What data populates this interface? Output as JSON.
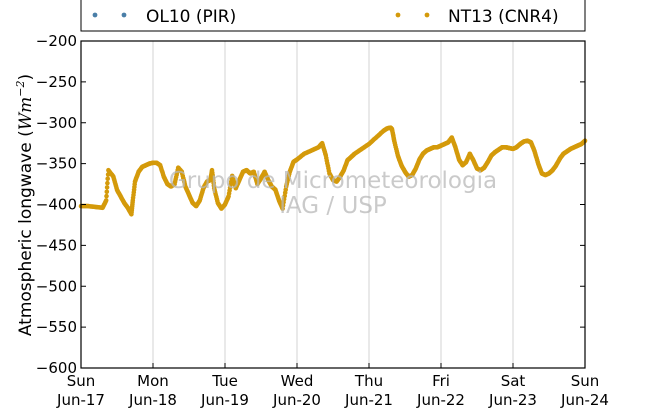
{
  "chart_data": {
    "type": "scatter",
    "ylabel": "Atmospheric longwave (",
    "ylabel_unit": "Wm",
    "ylabel_exp": "−2",
    "ylabel_close": ")",
    "ylim": [
      -600,
      -200
    ],
    "yticks": [
      -200,
      -250,
      -300,
      -350,
      -400,
      -450,
      -500,
      -550,
      -600
    ],
    "ytick_labels": [
      "−200",
      "−250",
      "−300",
      "−350",
      "−400",
      "−450",
      "−500",
      "−550",
      "−600"
    ],
    "xlim": [
      0,
      7
    ],
    "xticks": [
      {
        "x": 0,
        "day": "Sun",
        "date": "Jun-17"
      },
      {
        "x": 1,
        "day": "Mon",
        "date": "Jun-18"
      },
      {
        "x": 2,
        "day": "Tue",
        "date": "Jun-19"
      },
      {
        "x": 3,
        "day": "Wed",
        "date": "Jun-20"
      },
      {
        "x": 4,
        "day": "Thu",
        "date": "Jun-21"
      },
      {
        "x": 5,
        "day": "Fri",
        "date": "Jun-22"
      },
      {
        "x": 6,
        "day": "Sat",
        "date": "Jun-23"
      },
      {
        "x": 7,
        "day": "Sun",
        "date": "Jun-24"
      }
    ],
    "grid": "vertical",
    "legend_placement": "top",
    "series": [
      {
        "name": "OL10 (PIR)",
        "color": "#4a7fa8",
        "points": []
      },
      {
        "name": "NT13 (CNR4)",
        "color": "#d49a0b",
        "points": [
          [
            0.0,
            -402
          ],
          [
            0.1,
            -402
          ],
          [
            0.2,
            -403
          ],
          [
            0.3,
            -404
          ],
          [
            0.35,
            -395
          ],
          [
            0.38,
            -358
          ],
          [
            0.45,
            -366
          ],
          [
            0.5,
            -382
          ],
          [
            0.55,
            -390
          ],
          [
            0.6,
            -398
          ],
          [
            0.65,
            -404
          ],
          [
            0.7,
            -412
          ],
          [
            0.72,
            -395
          ],
          [
            0.75,
            -372
          ],
          [
            0.8,
            -360
          ],
          [
            0.85,
            -354
          ],
          [
            0.9,
            -352
          ],
          [
            0.95,
            -350
          ],
          [
            1.0,
            -349
          ],
          [
            1.05,
            -349
          ],
          [
            1.1,
            -352
          ],
          [
            1.15,
            -366
          ],
          [
            1.2,
            -375
          ],
          [
            1.25,
            -378
          ],
          [
            1.3,
            -375
          ],
          [
            1.35,
            -355
          ],
          [
            1.4,
            -360
          ],
          [
            1.45,
            -378
          ],
          [
            1.5,
            -388
          ],
          [
            1.55,
            -398
          ],
          [
            1.6,
            -402
          ],
          [
            1.65,
            -395
          ],
          [
            1.7,
            -380
          ],
          [
            1.75,
            -372
          ],
          [
            1.8,
            -370
          ],
          [
            1.82,
            -358
          ],
          [
            1.85,
            -380
          ],
          [
            1.9,
            -398
          ],
          [
            1.95,
            -405
          ],
          [
            2.0,
            -400
          ],
          [
            2.05,
            -390
          ],
          [
            2.1,
            -365
          ],
          [
            2.15,
            -380
          ],
          [
            2.2,
            -370
          ],
          [
            2.25,
            -360
          ],
          [
            2.3,
            -358
          ],
          [
            2.35,
            -362
          ],
          [
            2.4,
            -360
          ],
          [
            2.45,
            -375
          ],
          [
            2.5,
            -368
          ],
          [
            2.55,
            -360
          ],
          [
            2.6,
            -370
          ],
          [
            2.65,
            -378
          ],
          [
            2.7,
            -382
          ],
          [
            2.75,
            -395
          ],
          [
            2.8,
            -405
          ],
          [
            2.85,
            -378
          ],
          [
            2.9,
            -360
          ],
          [
            2.95,
            -348
          ],
          [
            3.0,
            -345
          ],
          [
            3.1,
            -338
          ],
          [
            3.2,
            -334
          ],
          [
            3.3,
            -330
          ],
          [
            3.35,
            -325
          ],
          [
            3.4,
            -340
          ],
          [
            3.45,
            -362
          ],
          [
            3.5,
            -370
          ],
          [
            3.55,
            -372
          ],
          [
            3.6,
            -366
          ],
          [
            3.65,
            -358
          ],
          [
            3.7,
            -346
          ],
          [
            3.75,
            -342
          ],
          [
            3.8,
            -338
          ],
          [
            3.9,
            -332
          ],
          [
            4.0,
            -326
          ],
          [
            4.1,
            -318
          ],
          [
            4.2,
            -310
          ],
          [
            4.25,
            -307
          ],
          [
            4.3,
            -306
          ],
          [
            4.32,
            -308
          ],
          [
            4.35,
            -322
          ],
          [
            4.4,
            -340
          ],
          [
            4.45,
            -352
          ],
          [
            4.5,
            -360
          ],
          [
            4.55,
            -366
          ],
          [
            4.6,
            -364
          ],
          [
            4.65,
            -356
          ],
          [
            4.7,
            -345
          ],
          [
            4.75,
            -338
          ],
          [
            4.8,
            -334
          ],
          [
            4.85,
            -332
          ],
          [
            4.9,
            -330
          ],
          [
            4.95,
            -330
          ],
          [
            5.0,
            -328
          ],
          [
            5.05,
            -326
          ],
          [
            5.1,
            -324
          ],
          [
            5.15,
            -318
          ],
          [
            5.2,
            -330
          ],
          [
            5.25,
            -345
          ],
          [
            5.3,
            -352
          ],
          [
            5.35,
            -348
          ],
          [
            5.4,
            -338
          ],
          [
            5.45,
            -346
          ],
          [
            5.5,
            -356
          ],
          [
            5.55,
            -358
          ],
          [
            5.6,
            -355
          ],
          [
            5.65,
            -348
          ],
          [
            5.7,
            -340
          ],
          [
            5.75,
            -336
          ],
          [
            5.8,
            -333
          ],
          [
            5.85,
            -330
          ],
          [
            5.9,
            -330
          ],
          [
            5.95,
            -331
          ],
          [
            6.0,
            -332
          ],
          [
            6.05,
            -330
          ],
          [
            6.1,
            -326
          ],
          [
            6.15,
            -323
          ],
          [
            6.2,
            -322
          ],
          [
            6.25,
            -324
          ],
          [
            6.3,
            -335
          ],
          [
            6.35,
            -350
          ],
          [
            6.4,
            -362
          ],
          [
            6.45,
            -364
          ],
          [
            6.5,
            -362
          ],
          [
            6.55,
            -358
          ],
          [
            6.6,
            -352
          ],
          [
            6.65,
            -344
          ],
          [
            6.7,
            -338
          ],
          [
            6.75,
            -335
          ],
          [
            6.8,
            -332
          ],
          [
            6.85,
            -330
          ],
          [
            6.9,
            -328
          ],
          [
            6.95,
            -326
          ],
          [
            7.0,
            -322
          ]
        ]
      }
    ],
    "watermark_lines": [
      "Grupo de Micrometeorologia",
      "IAG / USP"
    ]
  }
}
